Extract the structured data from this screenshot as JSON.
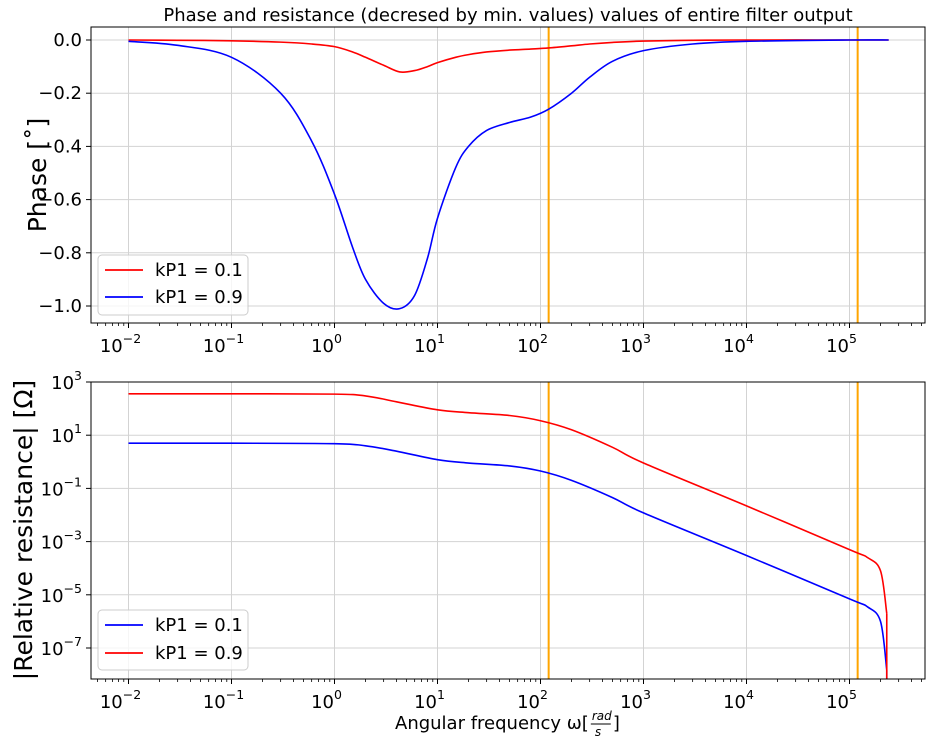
{
  "chart_data": [
    {
      "type": "line",
      "title": "Phase and resistance (decresed by min. values) values of entire filter output",
      "xlabel": "",
      "ylabel": "Phase [°]",
      "xscale": "log",
      "xlim": [
        0.005,
        500000
      ],
      "ylim": [
        -1.06,
        0.05
      ],
      "grid": true,
      "legend_position": "lower left",
      "x_ticks": [
        "10^-2",
        "10^-1",
        "10^0",
        "10^1",
        "10^2",
        "10^3",
        "10^4",
        "10^5"
      ],
      "y_ticks": [
        "0.0",
        "−0.2",
        "−0.4",
        "−0.6",
        "−0.8",
        "−1.0"
      ],
      "vlines": [
        {
          "x": 120,
          "color": "#ffa500"
        },
        {
          "x": 120000,
          "color": "#ffa500"
        }
      ],
      "x": [
        0.01,
        0.03,
        0.1,
        0.3,
        0.6,
        1,
        1.5,
        2,
        3,
        4.3,
        6,
        8,
        10,
        15,
        20,
        30,
        50,
        80,
        120,
        200,
        300,
        500,
        1000,
        3000,
        10000,
        100000,
        240000
      ],
      "series": [
        {
          "name": "kP1 = 0.1",
          "color": "#ff0000",
          "values": [
            0.0,
            -0.001,
            -0.003,
            -0.008,
            -0.015,
            -0.025,
            -0.045,
            -0.065,
            -0.095,
            -0.12,
            -0.115,
            -0.1,
            -0.085,
            -0.065,
            -0.055,
            -0.045,
            -0.038,
            -0.034,
            -0.03,
            -0.022,
            -0.015,
            -0.009,
            -0.004,
            -0.001,
            0.0,
            0.0,
            0.0
          ]
        },
        {
          "name": "kP1 = 0.9",
          "color": "#0000ff",
          "values": [
            -0.005,
            -0.02,
            -0.065,
            -0.2,
            -0.38,
            -0.58,
            -0.78,
            -0.9,
            -0.99,
            -1.01,
            -0.96,
            -0.82,
            -0.67,
            -0.48,
            -0.4,
            -0.34,
            -0.31,
            -0.29,
            -0.26,
            -0.2,
            -0.14,
            -0.08,
            -0.04,
            -0.015,
            -0.005,
            0.0,
            0.0
          ]
        }
      ]
    },
    {
      "type": "line",
      "title": "",
      "xlabel": "Angular frequency ω[rad/s]",
      "ylabel": "|Relative resistance| [Ω]",
      "xscale": "log",
      "yscale": "log",
      "xlim": [
        0.005,
        500000
      ],
      "ylim": [
        1e-08,
        1000
      ],
      "grid": true,
      "legend_position": "lower left",
      "x_ticks": [
        "10^-2",
        "10^-1",
        "10^0",
        "10^1",
        "10^2",
        "10^3",
        "10^4",
        "10^5"
      ],
      "y_ticks": [
        "10^3",
        "10^1",
        "10^-1",
        "10^-3",
        "10^-5",
        "10^-7"
      ],
      "vlines": [
        {
          "x": 120,
          "color": "#ffa500"
        },
        {
          "x": 120000,
          "color": "#ffa500"
        }
      ],
      "x": [
        0.01,
        0.1,
        1,
        2,
        4,
        10,
        20,
        50,
        100,
        200,
        500,
        1000,
        10000,
        100000,
        150000,
        200000,
        230000
      ],
      "series": [
        {
          "name": "kP1 = 0.1",
          "color": "#0000ff",
          "values": [
            5,
            5,
            4.8,
            4,
            2.5,
            1.2,
            0.9,
            0.7,
            0.45,
            0.2,
            0.045,
            0.012,
            0.0003,
            7e-06,
            3.5e-06,
            1e-06,
            1.5e-08
          ]
        },
        {
          "name": "kP1 = 0.9",
          "color": "#ff0000",
          "values": [
            360,
            360,
            350,
            300,
            180,
            90,
            70,
            55,
            35,
            16,
            3.5,
            0.9,
            0.022,
            0.0005,
            0.00025,
            8e-05,
            2e-06
          ]
        }
      ]
    }
  ],
  "figure": {
    "title": "Phase and resistance (decresed by min. values) values of entire filter output",
    "top": {
      "ylabel": "Phase [˚]",
      "yticks": [
        {
          "label": "0.0",
          "v": 0.0
        },
        {
          "label": "−0.2",
          "v": -0.2
        },
        {
          "label": "−0.4",
          "v": -0.4
        },
        {
          "label": "−0.6",
          "v": -0.6
        },
        {
          "label": "−0.8",
          "v": -0.8
        },
        {
          "label": "−1.0",
          "v": -1.0
        }
      ],
      "legend": [
        {
          "label": "kP1 = 0.1",
          "color": "#ff0000"
        },
        {
          "label": "kP1 = 0.9",
          "color": "#0000ff"
        }
      ]
    },
    "bottom": {
      "ylabel": "|Relative resistance| [Ω]",
      "xlabel_main": "Angular frequency ω[",
      "xlabel_num": "rad",
      "xlabel_den": "s",
      "xlabel_end": "]",
      "yticks": [
        {
          "base": "10",
          "exp": "3",
          "e": 3
        },
        {
          "base": "10",
          "exp": "1",
          "e": 1
        },
        {
          "base": "10",
          "exp": "−1",
          "e": -1
        },
        {
          "base": "10",
          "exp": "−3",
          "e": -3
        },
        {
          "base": "10",
          "exp": "−5",
          "e": -5
        },
        {
          "base": "10",
          "exp": "−7",
          "e": -7
        }
      ],
      "legend": [
        {
          "label": "kP1 = 0.1",
          "color": "#0000ff"
        },
        {
          "label": "kP1 = 0.9",
          "color": "#ff0000"
        }
      ]
    },
    "xticks": [
      {
        "base": "10",
        "exp": "−2",
        "e": -2
      },
      {
        "base": "10",
        "exp": "−1",
        "e": -1
      },
      {
        "base": "10",
        "exp": "0",
        "e": 0
      },
      {
        "base": "10",
        "exp": "1",
        "e": 1
      },
      {
        "base": "10",
        "exp": "2",
        "e": 2
      },
      {
        "base": "10",
        "exp": "3",
        "e": 3
      },
      {
        "base": "10",
        "exp": "4",
        "e": 4
      },
      {
        "base": "10",
        "exp": "5",
        "e": 5
      }
    ],
    "colors": {
      "red": "#ff0000",
      "blue": "#0000ff",
      "vline": "#ffa500",
      "grid": "#d3d3d3"
    }
  }
}
